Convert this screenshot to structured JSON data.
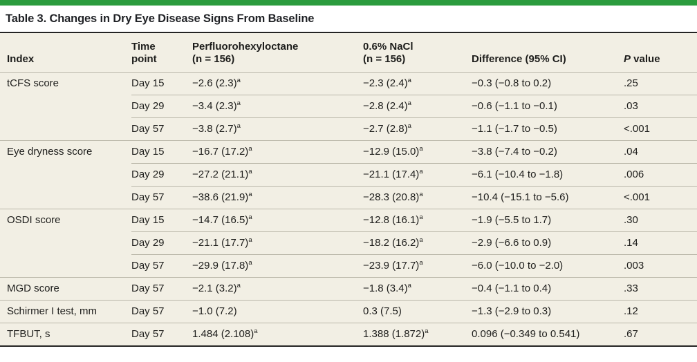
{
  "title": "Table 3. Changes in Dry Eye Disease Signs From Baseline",
  "header": {
    "index": "Index",
    "time_line1": "Time",
    "time_line2": "point",
    "pfho_line1": "Perfluorohexyloctane",
    "pfho_line2": "(n = 156)",
    "nacl_line1": "0.6% NaCl",
    "nacl_line2": "(n = 156)",
    "diff": "Difference (95% CI)",
    "pval_italic": "P",
    "pval_rest": " value"
  },
  "groups": [
    {
      "index": "tCFS score",
      "rows": [
        {
          "time": "Day 15",
          "pfho": "−2.6 (2.3)",
          "pfho_sup": "a",
          "nacl": "−2.3 (2.4)",
          "nacl_sup": "a",
          "diff": "−0.3 (−0.8 to 0.2)",
          "pval": ".25"
        },
        {
          "time": "Day 29",
          "pfho": "−3.4 (2.3)",
          "pfho_sup": "a",
          "nacl": "−2.8 (2.4)",
          "nacl_sup": "a",
          "diff": "−0.6 (−1.1 to −0.1)",
          "pval": ".03"
        },
        {
          "time": "Day 57",
          "pfho": "−3.8 (2.7)",
          "pfho_sup": "a",
          "nacl": "−2.7 (2.8)",
          "nacl_sup": "a",
          "diff": "−1.1 (−1.7 to −0.5)",
          "pval": "<.001"
        }
      ]
    },
    {
      "index": "Eye dryness score",
      "rows": [
        {
          "time": "Day 15",
          "pfho": "−16.7 (17.2)",
          "pfho_sup": "a",
          "nacl": "−12.9 (15.0)",
          "nacl_sup": "a",
          "diff": "−3.8 (−7.4 to −0.2)",
          "pval": ".04"
        },
        {
          "time": "Day 29",
          "pfho": "−27.2 (21.1)",
          "pfho_sup": "a",
          "nacl": "−21.1 (17.4)",
          "nacl_sup": "a",
          "diff": "−6.1 (−10.4 to −1.8)",
          "pval": ".006"
        },
        {
          "time": "Day 57",
          "pfho": "−38.6 (21.9)",
          "pfho_sup": "a",
          "nacl": "−28.3 (20.8)",
          "nacl_sup": "a",
          "diff": "−10.4 (−15.1 to −5.6)",
          "pval": "<.001"
        }
      ]
    },
    {
      "index": "OSDI score",
      "rows": [
        {
          "time": "Day 15",
          "pfho": "−14.7 (16.5)",
          "pfho_sup": "a",
          "nacl": "−12.8 (16.1)",
          "nacl_sup": "a",
          "diff": "−1.9 (−5.5 to 1.7)",
          "pval": ".30"
        },
        {
          "time": "Day 29",
          "pfho": "−21.1 (17.7)",
          "pfho_sup": "a",
          "nacl": "−18.2 (16.2)",
          "nacl_sup": "a",
          "diff": "−2.9 (−6.6 to 0.9)",
          "pval": ".14"
        },
        {
          "time": "Day 57",
          "pfho": "−29.9 (17.8)",
          "pfho_sup": "a",
          "nacl": "−23.9 (17.7)",
          "nacl_sup": "a",
          "diff": "−6.0 (−10.0 to −2.0)",
          "pval": ".003"
        }
      ]
    },
    {
      "index": "MGD score",
      "rows": [
        {
          "time": "Day 57",
          "pfho": "−2.1 (3.2)",
          "pfho_sup": "a",
          "nacl": "−1.8 (3.4)",
          "nacl_sup": "a",
          "diff": "−0.4 (−1.1 to 0.4)",
          "pval": ".33"
        }
      ]
    },
    {
      "index": "Schirmer I test, mm",
      "rows": [
        {
          "time": "Day 57",
          "pfho": "−1.0 (7.2)",
          "pfho_sup": "",
          "nacl": "0.3 (7.5)",
          "nacl_sup": "",
          "diff": "−1.3 (−2.9 to 0.3)",
          "pval": ".12"
        }
      ]
    },
    {
      "index": "TFBUT, s",
      "rows": [
        {
          "time": "Day 57",
          "pfho": "1.484 (2.108)",
          "pfho_sup": "a",
          "nacl": "1.388 (1.872)",
          "nacl_sup": "a",
          "diff": "0.096 (−0.349 to 0.541)",
          "pval": ".67"
        }
      ]
    }
  ],
  "colors": {
    "accent_green": "#2b9c3e",
    "table_background": "#f2efe4",
    "rule_dark": "#242423",
    "rule_light": "#b9b6a8",
    "text": "#1d1d1b"
  }
}
